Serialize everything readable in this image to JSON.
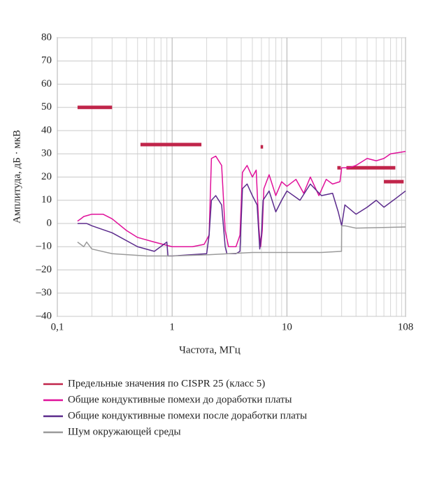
{
  "chart_data": {
    "type": "line",
    "x_label": "Частота, МГц",
    "y_label": "Амплитуда, дБ · мкВ",
    "xlim": [
      0.1,
      108
    ],
    "x_log": true,
    "xticks": [
      {
        "value": 0.1,
        "label": "0,1"
      },
      1,
      10,
      108
    ],
    "x_minor_grid": [
      0.2,
      0.3,
      0.4,
      0.5,
      0.6,
      0.7,
      0.8,
      0.9,
      2,
      3,
      4,
      5,
      6,
      7,
      8,
      9,
      20,
      30,
      40,
      50,
      60,
      70,
      80,
      90,
      100
    ],
    "ylim": [
      -40,
      80
    ],
    "yticks": [
      {
        "value": -40,
        "label": "–40"
      },
      {
        "value": -30,
        "label": "–30"
      },
      {
        "value": -20,
        "label": "–20"
      },
      {
        "value": -10,
        "label": "–10"
      },
      0,
      10,
      20,
      30,
      40,
      50,
      60,
      70,
      80
    ],
    "grid": true,
    "series": [
      {
        "name": "Предельные значения по CISPR 25 (класс 5)",
        "color": "#c0254a",
        "style": "segments",
        "x": [
          0.15,
          0.3,
          null,
          0.53,
          1.8,
          null,
          5.9,
          6.2,
          null,
          27.5,
          29.5,
          null,
          33,
          88,
          null,
          70,
          104
        ],
        "values": [
          50,
          50,
          null,
          34,
          34,
          null,
          33,
          33,
          null,
          24,
          24,
          null,
          24,
          24,
          null,
          18,
          18
        ]
      },
      {
        "name": "Общие кондуктивные помехи до доработки платы",
        "color": "#e0119a",
        "x": [
          0.15,
          0.16,
          0.17,
          0.2,
          0.25,
          0.3,
          0.4,
          0.5,
          0.7,
          1,
          1.5,
          1.9,
          2.1,
          2.2,
          2.4,
          2.7,
          2.9,
          3.1,
          3.6,
          3.9,
          4.1,
          4.5,
          5,
          5.4,
          5.7,
          5.9,
          6.1,
          6.3,
          7,
          8,
          9,
          10,
          12,
          14,
          16,
          19,
          22,
          25,
          29,
          30,
          35,
          40,
          50,
          60,
          70,
          80,
          108
        ],
        "values": [
          1,
          2,
          3,
          4,
          4,
          2,
          -3,
          -6,
          -8,
          -10,
          -10,
          -9,
          -5,
          28,
          29,
          25,
          -3,
          -10,
          -10,
          -5,
          22,
          25,
          20,
          23,
          -2,
          -10,
          -3,
          15,
          21,
          12,
          18,
          16,
          19,
          13,
          20,
          12,
          19,
          17,
          18,
          24,
          24,
          25,
          28,
          27,
          28,
          30,
          31
        ]
      },
      {
        "name": "Общие кондуктивные помехи после доработки платы",
        "color": "#5b2a8c",
        "x": [
          0.15,
          0.18,
          0.2,
          0.3,
          0.5,
          0.7,
          0.9,
          0.92,
          1,
          2,
          2.1,
          2.2,
          2.4,
          2.7,
          2.9,
          3,
          3.6,
          3.9,
          4.1,
          4.5,
          5,
          5.5,
          5.8,
          6,
          6.2,
          7,
          8,
          9,
          10,
          13,
          16,
          20,
          25,
          28,
          30,
          32,
          40,
          50,
          60,
          70,
          90,
          108
        ],
        "values": [
          0,
          0,
          -1,
          -4,
          -10,
          -12,
          -8,
          -14,
          -14,
          -13,
          -5,
          10,
          12,
          8,
          -10,
          -13,
          -13,
          -12,
          15,
          17,
          12,
          8,
          -11,
          -5,
          10,
          14,
          5,
          10,
          14,
          10,
          17,
          12,
          13,
          5,
          -1,
          8,
          4,
          7,
          10,
          7,
          11,
          14
        ]
      },
      {
        "name": "Шум окружающей среды",
        "color": "#9a9a9a",
        "x": [
          0.15,
          0.17,
          0.18,
          0.2,
          0.3,
          0.6,
          1,
          2,
          5,
          10,
          20,
          29.9,
          30,
          32,
          40,
          108
        ],
        "values": [
          -8,
          -10,
          -8,
          -11,
          -13,
          -14,
          -14,
          -13.5,
          -12.5,
          -12.5,
          -12.5,
          -12,
          -1,
          -1,
          -2,
          -1.5
        ]
      }
    ]
  }
}
